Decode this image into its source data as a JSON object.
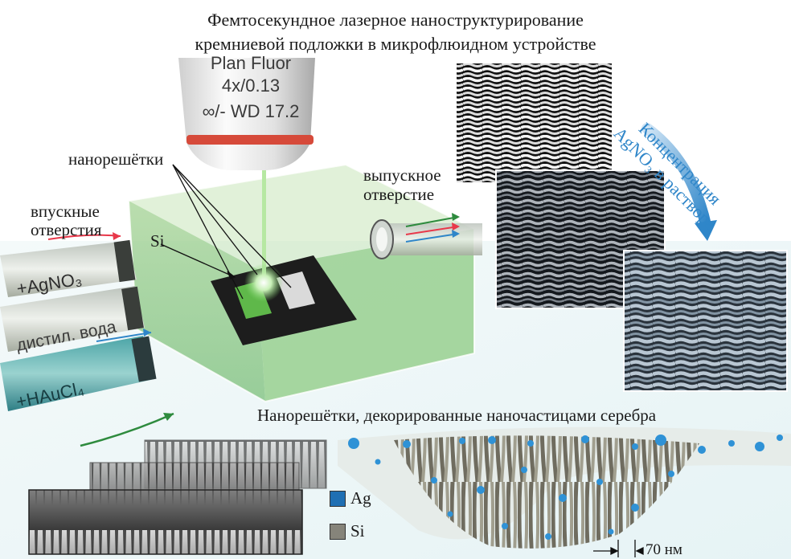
{
  "title": {
    "line1": "Фемтосекундное лазерное наноструктурирование",
    "line2": "кремниевой подложки в микрофлюидном устройстве"
  },
  "objective": {
    "line1": "Plan Fluor",
    "line2": "4x/0.13",
    "line3": "∞/- WD 17.2"
  },
  "labels": {
    "nanogratings": "нанорешётки",
    "si": "Si",
    "inlets_line1": "впускные",
    "inlets_line2": "отверстия",
    "outlet_line1": "выпускное",
    "outlet_line2": "отверстие"
  },
  "tubes": {
    "agno3": "+AgNO₃",
    "water": "дистил. вода",
    "haucl4": "+HAuCl₄"
  },
  "concentration": {
    "line1": "Концентрация",
    "line2": "AgNO₃ в растворе"
  },
  "decorated_caption": "Нанорешётки, декорированные наночастицами серебра",
  "legend": {
    "ag": "Ag",
    "si": "Si",
    "ag_color": "#1f6fb3",
    "si_color": "#86847a"
  },
  "scale": "70 нм",
  "colors": {
    "arrow_red": "#e8384a",
    "arrow_green": "#2e8b3e",
    "arrow_blue": "#2f86c9",
    "chip_green": "#5fb84a"
  }
}
